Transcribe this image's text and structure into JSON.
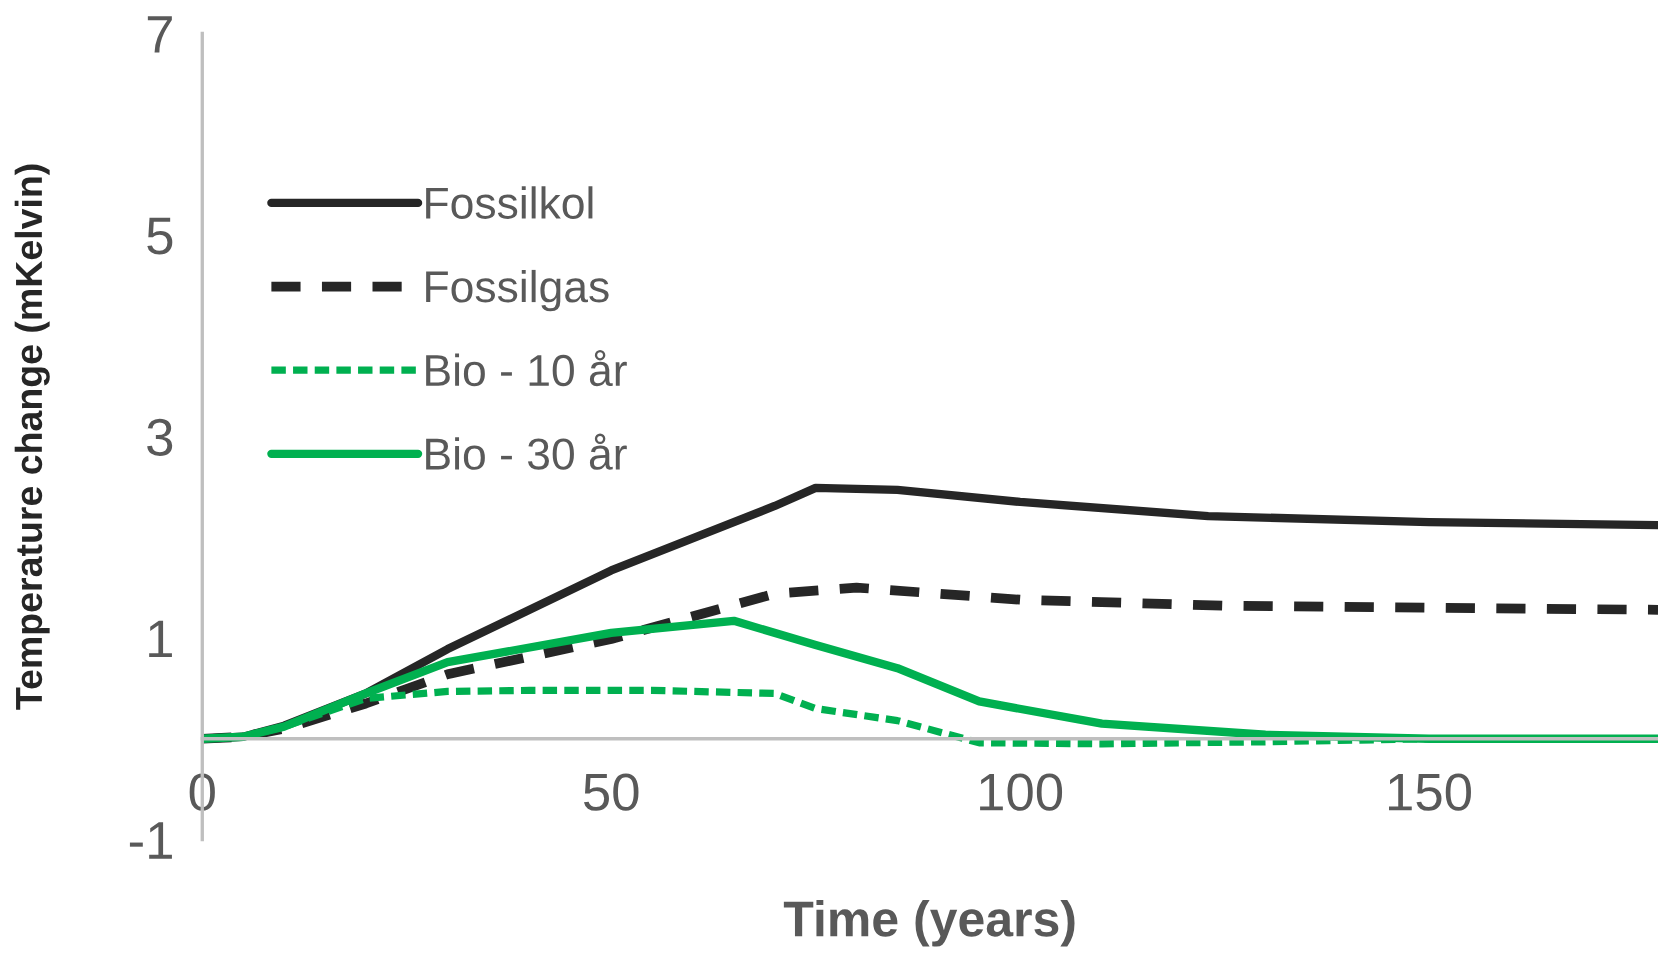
{
  "chart_data": {
    "type": "line",
    "xlabel": "Time (years)",
    "ylabel": "Temperature change (mKelvin)",
    "xlim": [
      0,
      178
    ],
    "xticks": [
      0,
      50,
      100,
      150
    ],
    "ylim": [
      -1,
      7
    ],
    "yticks": [
      -1,
      1,
      3,
      5,
      7
    ],
    "grid": false,
    "legend": "top left",
    "marker": "none",
    "series": [
      {
        "name": "Fossilkol",
        "color": "#262626",
        "line_style": "solid",
        "x": [
          0,
          5,
          10,
          20,
          30,
          50,
          70,
          75,
          85,
          100,
          123,
          150,
          178
        ],
        "values": [
          0,
          0.02,
          0.13,
          0.45,
          0.89,
          1.67,
          2.31,
          2.49,
          2.47,
          2.35,
          2.21,
          2.15,
          2.12
        ]
      },
      {
        "name": "Fossilgas",
        "color": "#262626",
        "line_style": "dashed",
        "x": [
          0,
          5,
          10,
          20,
          30,
          50,
          70,
          80,
          100,
          125,
          150,
          178
        ],
        "values": [
          0,
          0.02,
          0.1,
          0.35,
          0.64,
          0.99,
          1.44,
          1.5,
          1.38,
          1.32,
          1.3,
          1.28
        ]
      },
      {
        "name": "Bio - 10 år",
        "color": "#00b050",
        "line_style": "dotted",
        "x": [
          0,
          5,
          10,
          20,
          30,
          40,
          55,
          70,
          75,
          85,
          95,
          110,
          130,
          150,
          178
        ],
        "values": [
          0,
          0.02,
          0.12,
          0.4,
          0.47,
          0.48,
          0.48,
          0.45,
          0.3,
          0.18,
          -0.04,
          -0.05,
          -0.03,
          0,
          0
        ]
      },
      {
        "name": "Bio - 30 år",
        "color": "#00b050",
        "line_style": "solid",
        "x": [
          0,
          5,
          10,
          20,
          30,
          50,
          65,
          75,
          85,
          95,
          110,
          130,
          150,
          178
        ],
        "values": [
          0,
          0.02,
          0.12,
          0.45,
          0.76,
          1.05,
          1.17,
          0.93,
          0.7,
          0.37,
          0.15,
          0.04,
          0,
          0
        ]
      }
    ]
  }
}
